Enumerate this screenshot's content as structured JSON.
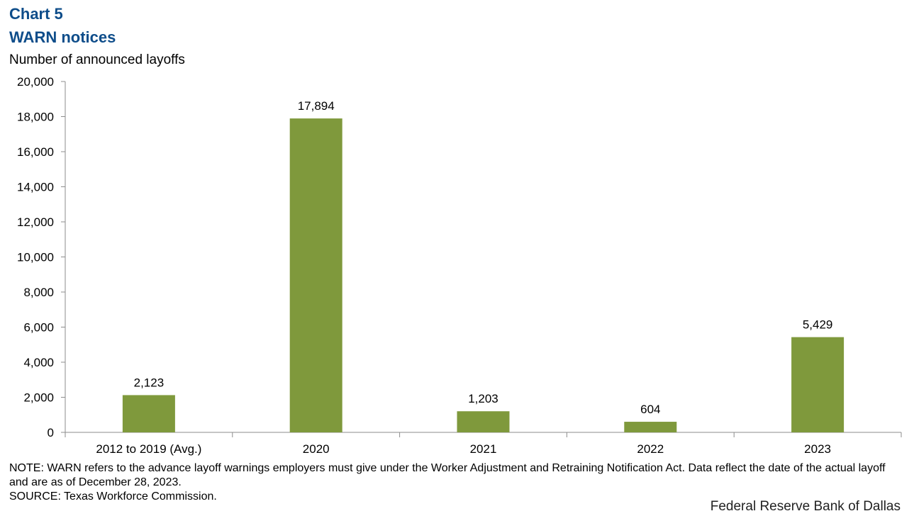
{
  "header": {
    "chart_number": "Chart 5",
    "title": "WARN notices",
    "y_axis_label": "Number of announced layoffs"
  },
  "chart_data": {
    "type": "bar",
    "title": "WARN notices",
    "ylabel": "Number of announced layoffs",
    "xlabel": "",
    "categories": [
      "2012 to 2019 (Avg.)",
      "2020",
      "2021",
      "2022",
      "2023"
    ],
    "values": [
      2123,
      17894,
      1203,
      604,
      5429
    ],
    "data_labels": [
      "2,123",
      "17,894",
      "1,203",
      "604",
      "5,429"
    ],
    "ylim": [
      0,
      20000
    ],
    "yticks": [
      0,
      2000,
      4000,
      6000,
      8000,
      10000,
      12000,
      14000,
      16000,
      18000,
      20000
    ],
    "ytick_labels": [
      "0",
      "2,000",
      "4,000",
      "6,000",
      "8,000",
      "10,000",
      "12,000",
      "14,000",
      "16,000",
      "18,000",
      "20,000"
    ],
    "grid": false,
    "legend": "none",
    "bar_color": "#7f993c"
  },
  "notes": {
    "note": "NOTE: WARN refers to the advance layoff warnings employers must give under the Worker Adjustment and Retraining Notification Act. Data reflect the date of the actual layoff and are as of December 28, 2023.",
    "source": "SOURCE: Texas Workforce Commission."
  },
  "footer": {
    "credit": "Federal Reserve Bank of Dallas"
  }
}
